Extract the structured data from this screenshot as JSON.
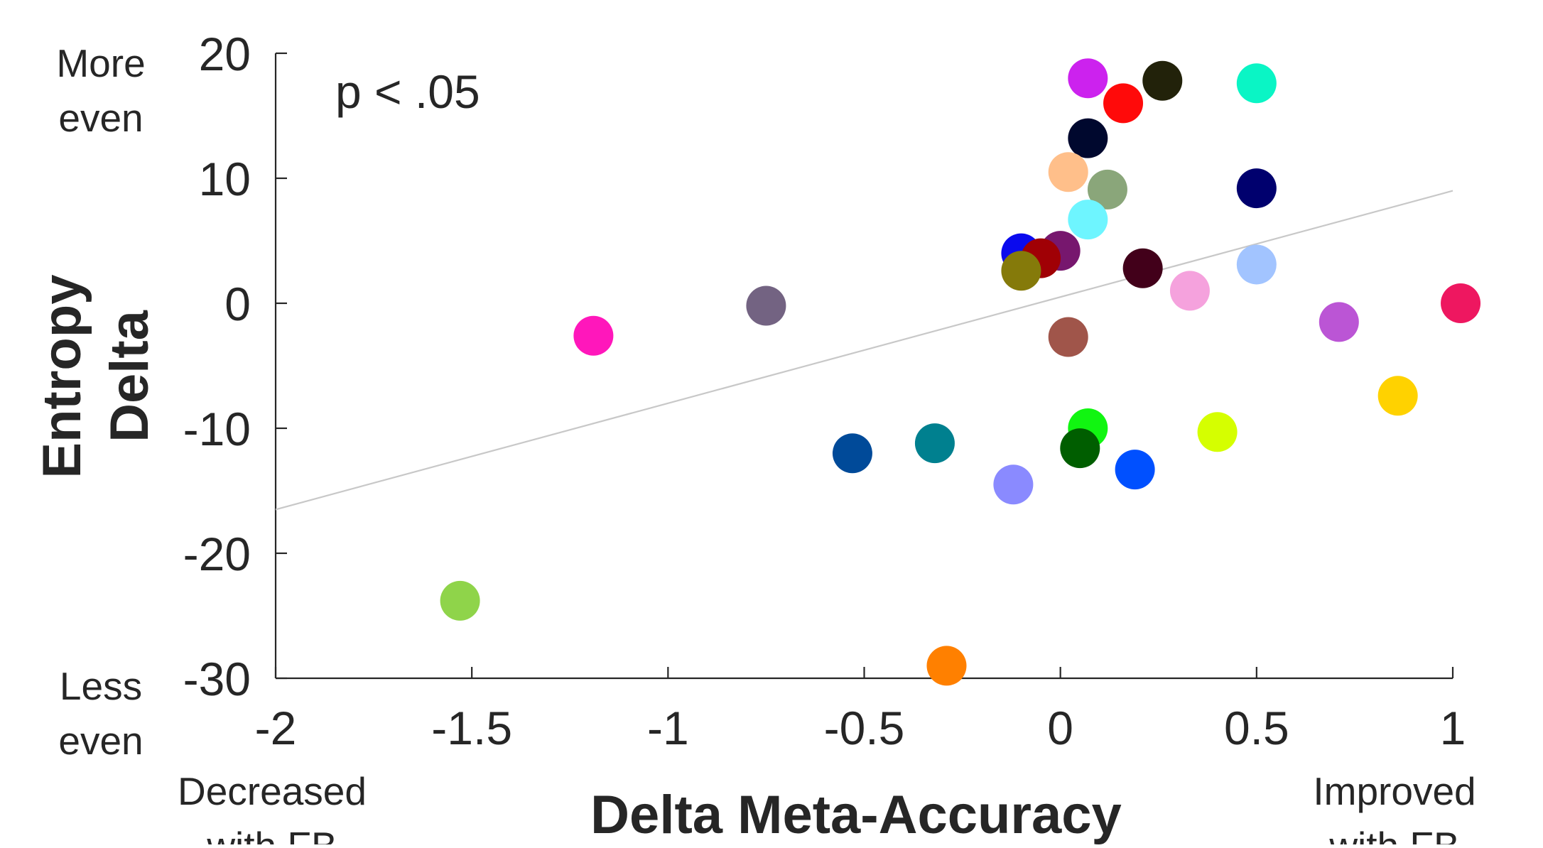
{
  "chart_data": {
    "type": "scatter",
    "xlabel": "Delta Meta-Accuracy",
    "ylabel": [
      "Entropy",
      "Delta"
    ],
    "xlim": [
      -2,
      1
    ],
    "ylim": [
      -30,
      20
    ],
    "xticks": [
      "-2",
      "-1.5",
      "-1",
      "-0.5",
      "0",
      "0.5",
      "1"
    ],
    "yticks": [
      "20",
      "10",
      "0",
      "-10",
      "-20",
      "-30"
    ],
    "annotation": "p < .05",
    "y_top_label": [
      "More",
      "even"
    ],
    "y_bottom_label": [
      "Less",
      "even"
    ],
    "x_left_label": [
      "Decreased",
      "with FB"
    ],
    "x_right_label": [
      "Improved",
      "with FB"
    ],
    "grid": false,
    "fit_line": {
      "x": [
        -2,
        1
      ],
      "y": [
        -16.5,
        9.0
      ],
      "color": "#c8c8c8"
    },
    "points": [
      {
        "x": 0.07,
        "y": 18.0,
        "color": "#cc22ee"
      },
      {
        "x": 0.26,
        "y": 17.8,
        "color": "#22220a"
      },
      {
        "x": 0.16,
        "y": 16.0,
        "color": "#ff0a0a"
      },
      {
        "x": 0.5,
        "y": 17.6,
        "color": "#0af5c5"
      },
      {
        "x": 0.07,
        "y": 13.2,
        "color": "#00082e"
      },
      {
        "x": 0.02,
        "y": 10.5,
        "color": "#ffbf8a"
      },
      {
        "x": 0.12,
        "y": 9.1,
        "color": "#8aa67a"
      },
      {
        "x": 0.5,
        "y": 9.2,
        "color": "#00006e"
      },
      {
        "x": 0.07,
        "y": 6.7,
        "color": "#6ef5ff"
      },
      {
        "x": -0.1,
        "y": 4.0,
        "color": "#0a0aee"
      },
      {
        "x": 0.0,
        "y": 4.2,
        "color": "#77176e"
      },
      {
        "x": -0.05,
        "y": 3.6,
        "color": "#a00005"
      },
      {
        "x": -0.1,
        "y": 2.6,
        "color": "#857a0a"
      },
      {
        "x": 0.21,
        "y": 2.8,
        "color": "#42001a"
      },
      {
        "x": 0.33,
        "y": 1.0,
        "color": "#f5a2dd"
      },
      {
        "x": 0.5,
        "y": 3.1,
        "color": "#a2c4ff"
      },
      {
        "x": -0.75,
        "y": -0.2,
        "color": "#736382"
      },
      {
        "x": 1.02,
        "y": 0.0,
        "color": "#ee1760"
      },
      {
        "x": 0.71,
        "y": -1.5,
        "color": "#bb55d5"
      },
      {
        "x": -1.19,
        "y": -2.6,
        "color": "#ff17bb"
      },
      {
        "x": 0.02,
        "y": -2.7,
        "color": "#a0554a"
      },
      {
        "x": 0.86,
        "y": -7.4,
        "color": "#ffd200"
      },
      {
        "x": 0.07,
        "y": -10.0,
        "color": "#11f511"
      },
      {
        "x": 0.4,
        "y": -10.3,
        "color": "#d5ff00"
      },
      {
        "x": -0.53,
        "y": -12.0,
        "color": "#004a99"
      },
      {
        "x": -0.32,
        "y": -11.2,
        "color": "#00808f"
      },
      {
        "x": 0.05,
        "y": -11.6,
        "color": "#005e00"
      },
      {
        "x": 0.19,
        "y": -13.3,
        "color": "#0050ff"
      },
      {
        "x": -0.12,
        "y": -14.5,
        "color": "#8a8aff"
      },
      {
        "x": -1.53,
        "y": -23.8,
        "color": "#8fd44a"
      },
      {
        "x": -0.29,
        "y": -29.0,
        "color": "#ff8000"
      }
    ]
  }
}
